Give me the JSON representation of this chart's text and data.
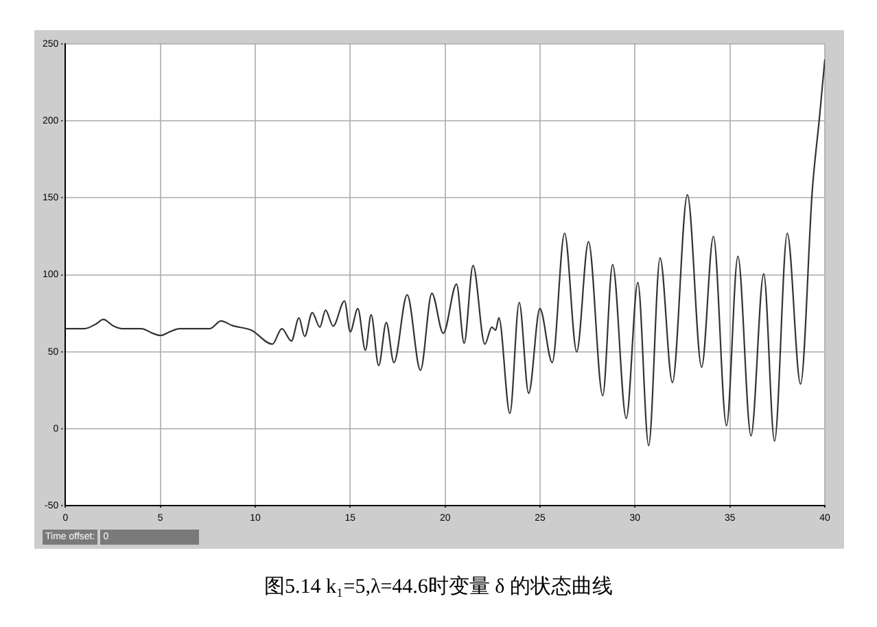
{
  "chart_data": {
    "type": "line",
    "title": "图5.14 k₁=5,λ=44.6时变量 δ 的状态曲线",
    "annotations": [
      "Time offset:",
      "0"
    ],
    "xlim": [
      0,
      40
    ],
    "xticks": [
      0,
      5,
      10,
      15,
      20,
      25,
      30,
      35,
      40
    ],
    "ylim": [
      -50,
      250
    ],
    "yticks": [
      -50,
      0,
      50,
      100,
      150,
      200,
      250
    ],
    "grid": true,
    "legend": false,
    "marker": "none",
    "line_style": "solid",
    "series": [
      {
        "color": "#333333",
        "x": [
          0,
          1.0,
          1.6,
          2.0,
          2.5,
          3.0,
          4.0,
          4.6,
          5.0,
          5.5,
          6.0,
          7.0,
          7.6,
          8.2,
          8.8,
          9.8,
          10.9,
          11.4,
          11.9,
          12.3,
          12.6,
          13.0,
          13.4,
          13.7,
          14.1,
          14.7,
          15.0,
          15.4,
          15.8,
          16.1,
          16.5,
          16.9,
          17.3,
          18.0,
          18.7,
          19.3,
          19.9,
          20.6,
          21.0,
          21.47,
          22.09,
          22.46,
          22.66,
          22.83,
          23.41,
          23.9,
          24.4,
          24.99,
          25.64,
          26.29,
          26.93,
          27.55,
          28.3,
          28.82,
          29.54,
          30.15,
          30.72,
          31.32,
          31.97,
          32.76,
          33.51,
          34.13,
          34.82,
          35.42,
          36.11,
          36.78,
          37.35,
          38.02,
          38.72,
          39.34,
          39.72,
          40
        ],
        "values": [
          65,
          65,
          68,
          71,
          67,
          65,
          65,
          62,
          60.6,
          63,
          65,
          65,
          65,
          70,
          67,
          64,
          55,
          65,
          57,
          72,
          60,
          75.5,
          66,
          77,
          66.7,
          83,
          63,
          78,
          51,
          74,
          41,
          69,
          43,
          87,
          38,
          88,
          62,
          94,
          55.6,
          106,
          55,
          66,
          64,
          72,
          10,
          82,
          23,
          78,
          43,
          127,
          50,
          121.5,
          21.5,
          106.7,
          6.7,
          95,
          -11,
          111,
          30,
          152,
          40,
          125,
          2,
          112,
          -4.6,
          100.7,
          -8,
          127,
          29,
          155,
          202.6,
          240
        ]
      }
    ]
  }
}
